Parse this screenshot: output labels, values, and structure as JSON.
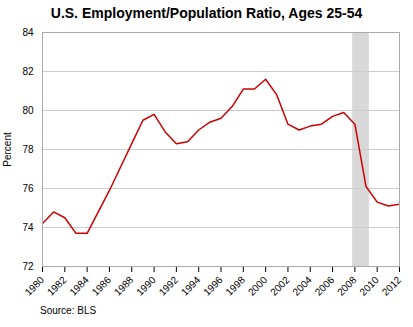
{
  "chart_data": {
    "type": "line",
    "title": "U.S. Employment/Population Ratio, Ages 25-54",
    "ylabel": "Percent",
    "source": "Source: BLS",
    "x": [
      1980,
      1981,
      1982,
      1983,
      1984,
      1985,
      1986,
      1987,
      1988,
      1989,
      1990,
      1991,
      1992,
      1993,
      1994,
      1995,
      1996,
      1997,
      1998,
      1999,
      2000,
      2001,
      2002,
      2003,
      2004,
      2005,
      2006,
      2007,
      2008,
      2009,
      2010,
      2011,
      2012
    ],
    "values": [
      74.2,
      74.8,
      74.5,
      73.7,
      73.7,
      74.8,
      75.9,
      77.1,
      78.3,
      79.5,
      79.8,
      78.9,
      78.3,
      78.4,
      79.0,
      79.4,
      79.6,
      80.2,
      81.1,
      81.1,
      81.6,
      80.8,
      79.3,
      79.0,
      79.2,
      79.3,
      79.7,
      79.9,
      79.3,
      76.1,
      75.3,
      75.1,
      75.2
    ],
    "color": "#cc0000",
    "shaded_region": {
      "x": [
        2007.8,
        2009.3
      ],
      "color": "#d8d8d8"
    },
    "xlim": [
      1980,
      2012
    ],
    "xticks": [
      1980,
      1982,
      1984,
      1986,
      1988,
      1990,
      1992,
      1994,
      1996,
      1998,
      2000,
      2002,
      2004,
      2006,
      2008,
      2010,
      2012
    ],
    "ylim": [
      72,
      84
    ],
    "yticks": [
      72,
      74,
      76,
      78,
      80,
      82,
      84
    ],
    "grid": true
  }
}
